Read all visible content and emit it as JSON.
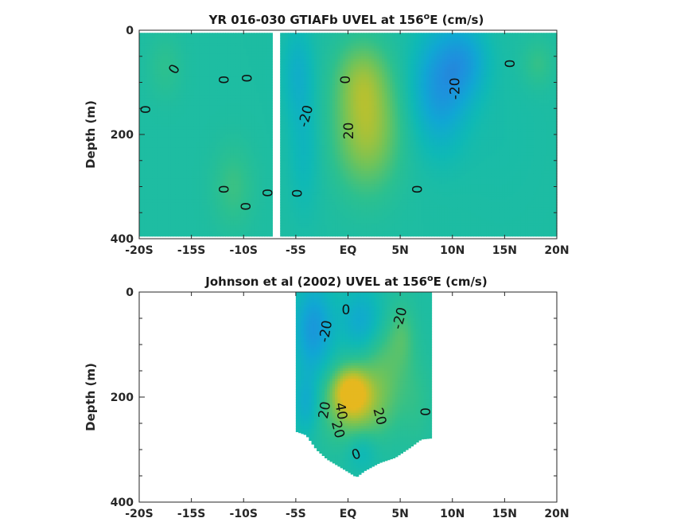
{
  "chart_data": [
    {
      "type": "heatmap",
      "title": "YR 016-030 GTIAFb UVEL at 156",
      "title_sup": "o",
      "title_end": "E (cm/s)",
      "ylabel": "Depth (m)",
      "xlim": [
        -20,
        20
      ],
      "ylim": [
        0,
        400
      ],
      "yreversed": true,
      "x_ticks": [
        -20,
        -15,
        -10,
        -5,
        0,
        5,
        10,
        15,
        20
      ],
      "x_tick_labels": [
        "-20S",
        "-15S",
        "-10S",
        "-5S",
        "EQ",
        "5N",
        "10N",
        "15N",
        "20N"
      ],
      "y_ticks": [
        0,
        200,
        400
      ],
      "y_tick_labels": [
        "0",
        "200",
        "400"
      ],
      "data_extent": {
        "lat": [
          -20,
          20
        ],
        "depth": [
          5,
          395
        ]
      },
      "missing_lat_band": [
        -7.3,
        -6.4
      ],
      "colormap": [
        "#3b66c9",
        "#1f8fde",
        "#10a7d3",
        "#0fb9b5",
        "#2cc08f",
        "#6fc35a",
        "#b3c132",
        "#e6b81f"
      ],
      "color_range": [
        -50,
        50
      ],
      "contour_labels": [
        "0",
        "0",
        "0",
        "0",
        "0",
        "0",
        "0",
        "0",
        "0",
        "-20",
        "20",
        "-20",
        "0",
        "0"
      ],
      "contour_label_points": [
        {
          "lat": -19.3,
          "depth": 152,
          "angle": -90
        },
        {
          "lat": -16.6,
          "depth": 75,
          "angle": -60
        },
        {
          "lat": -11.8,
          "depth": 95,
          "angle": -90
        },
        {
          "lat": -9.6,
          "depth": 92,
          "angle": -90
        },
        {
          "lat": -11.8,
          "depth": 305,
          "angle": -90
        },
        {
          "lat": -9.7,
          "depth": 338,
          "angle": -90
        },
        {
          "lat": -7.6,
          "depth": 312,
          "angle": -90
        },
        {
          "lat": -4.8,
          "depth": 313,
          "angle": -90
        },
        {
          "lat": -0.2,
          "depth": 95,
          "angle": -90
        },
        {
          "lat": -4.0,
          "depth": 165,
          "angle": -75
        },
        {
          "lat": 0.1,
          "depth": 193,
          "angle": -90
        },
        {
          "lat": 10.3,
          "depth": 112,
          "angle": -90
        },
        {
          "lat": 6.7,
          "depth": 305,
          "angle": -90
        },
        {
          "lat": 15.6,
          "depth": 64,
          "angle": -90
        }
      ],
      "features": [
        {
          "lat": 1.8,
          "depth": 190,
          "value": 32,
          "rlat": 3.0,
          "rdepth": 110
        },
        {
          "lat": 1.3,
          "depth": 90,
          "value": 18,
          "rlat": 2.4,
          "rdepth": 70
        },
        {
          "lat": 8.8,
          "depth": 110,
          "value": -30,
          "rlat": 2.6,
          "rdepth": 110
        },
        {
          "lat": 11.2,
          "depth": 60,
          "value": -22,
          "rlat": 2.2,
          "rdepth": 70
        },
        {
          "lat": -4.8,
          "depth": 80,
          "value": -14,
          "rlat": 1.5,
          "rdepth": 90
        },
        {
          "lat": -4.2,
          "depth": 230,
          "value": -10,
          "rlat": 1.5,
          "rdepth": 120
        },
        {
          "lat": -11.0,
          "depth": 300,
          "value": 10,
          "rlat": 2.0,
          "rdepth": 80
        },
        {
          "lat": -17.5,
          "depth": 70,
          "value": 7,
          "rlat": 1.6,
          "rdepth": 60
        },
        {
          "lat": 18.2,
          "depth": 65,
          "value": 9,
          "rlat": 1.5,
          "rdepth": 45
        },
        {
          "lat": 14.5,
          "depth": 200,
          "value": -2,
          "rlat": 4.0,
          "rdepth": 150
        }
      ]
    },
    {
      "type": "heatmap",
      "title": "Johnson et al (2002) UVEL at 156",
      "title_sup": "o",
      "title_end": "E (cm/s)",
      "ylabel": "Depth (m)",
      "xlim": [
        -20,
        20
      ],
      "ylim": [
        0,
        400
      ],
      "yreversed": true,
      "x_ticks": [
        -20,
        -15,
        -10,
        -5,
        0,
        5,
        10,
        15,
        20
      ],
      "x_tick_labels": [
        "-20S",
        "-15S",
        "-10S",
        "-5S",
        "EQ",
        "5N",
        "10N",
        "15N",
        "20N"
      ],
      "y_ticks": [
        0,
        200,
        400
      ],
      "y_tick_labels": [
        "0",
        "200",
        "400"
      ],
      "data_extent": {
        "lat": [
          -5,
          8
        ]
      },
      "bottom_profile": [
        {
          "lat": -5.0,
          "depth": 265
        },
        {
          "lat": -4.0,
          "depth": 272
        },
        {
          "lat": -3.0,
          "depth": 300
        },
        {
          "lat": -2.0,
          "depth": 318
        },
        {
          "lat": -1.0,
          "depth": 330
        },
        {
          "lat": 0.0,
          "depth": 342
        },
        {
          "lat": 0.8,
          "depth": 352
        },
        {
          "lat": 1.6,
          "depth": 340
        },
        {
          "lat": 3.0,
          "depth": 325
        },
        {
          "lat": 4.5,
          "depth": 315
        },
        {
          "lat": 6.0,
          "depth": 295
        },
        {
          "lat": 7.0,
          "depth": 280
        },
        {
          "lat": 8.0,
          "depth": 278
        }
      ],
      "colormap": [
        "#3b66c9",
        "#1f8fde",
        "#10a7d3",
        "#0fb9b5",
        "#2cc08f",
        "#6fc35a",
        "#b3c132",
        "#e6b81f"
      ],
      "color_range": [
        -50,
        50
      ],
      "contour_labels": [
        "0",
        "-20",
        "-20",
        "20",
        "40",
        "20",
        "20",
        "0",
        "0"
      ],
      "contour_label_points": [
        {
          "lat": -0.2,
          "depth": 35,
          "angle": 0
        },
        {
          "lat": -2.1,
          "depth": 75,
          "angle": -80
        },
        {
          "lat": 5.0,
          "depth": 50,
          "angle": -75
        },
        {
          "lat": -2.2,
          "depth": 225,
          "angle": -80
        },
        {
          "lat": -0.7,
          "depth": 227,
          "angle": 80
        },
        {
          "lat": -1.0,
          "depth": 262,
          "angle": 75
        },
        {
          "lat": 3.0,
          "depth": 237,
          "angle": 75
        },
        {
          "lat": 7.5,
          "depth": 228,
          "angle": -90
        },
        {
          "lat": 0.8,
          "depth": 310,
          "angle": -20
        }
      ],
      "features": [
        {
          "lat": 0.3,
          "depth": 190,
          "value": 42,
          "rlat": 1.6,
          "rdepth": 40
        },
        {
          "lat": 0.8,
          "depth": 215,
          "value": 28,
          "rlat": 3.0,
          "rdepth": 70
        },
        {
          "lat": 3.6,
          "depth": 140,
          "value": 14,
          "rlat": 2.2,
          "rdepth": 90
        },
        {
          "lat": 5.2,
          "depth": 80,
          "value": 10,
          "rlat": 1.2,
          "rdepth": 60
        },
        {
          "lat": -3.3,
          "depth": 70,
          "value": -30,
          "rlat": 1.8,
          "rdepth": 80
        },
        {
          "lat": 1.3,
          "depth": 55,
          "value": -20,
          "rlat": 2.0,
          "rdepth": 60
        },
        {
          "lat": -4.0,
          "depth": 210,
          "value": -18,
          "rlat": 1.2,
          "rdepth": 60
        },
        {
          "lat": 1.3,
          "depth": 300,
          "value": -12,
          "rlat": 1.5,
          "rdepth": 40
        },
        {
          "lat": 6.6,
          "depth": 210,
          "value": 6,
          "rlat": 1.5,
          "rdepth": 90
        }
      ]
    }
  ]
}
